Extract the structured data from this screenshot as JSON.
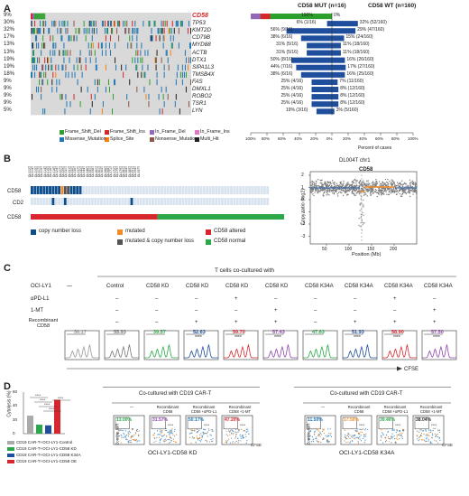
{
  "panelA": {
    "label": "A",
    "header_mut": "CD58 MUT (n=16)",
    "header_wt": "CD58 WT (n=160)",
    "x_title": "Percent of cases",
    "x_ticks": [
      "100%",
      "80%",
      "60%",
      "40%",
      "20%",
      "0%",
      "20%",
      "40%",
      "60%",
      "80%",
      "100%"
    ],
    "genes": [
      {
        "name": "CD58",
        "pct": "9%",
        "mut": "100%",
        "wt": "0%",
        "mut_frac": 1.0,
        "wt_frac": 0.0,
        "highlight": true
      },
      {
        "name": "TP53",
        "pct": "30%",
        "mut": "6% (1/16)",
        "wt": "32% (52/160)",
        "mut_frac": 0.06,
        "wt_frac": 0.32
      },
      {
        "name": "KMT2D",
        "pct": "32%",
        "mut": "56% (9/16)",
        "wt": "29% (47/160)",
        "mut_frac": 0.56,
        "wt_frac": 0.29
      },
      {
        "name": "CD79B",
        "pct": "17%",
        "mut": "38% (6/16)",
        "wt": "15% (24/160)",
        "mut_frac": 0.38,
        "wt_frac": 0.15
      },
      {
        "name": "MYD88",
        "pct": "13%",
        "mut": "31% (5/16)",
        "wt": "11% (18/160)",
        "mut_frac": 0.31,
        "wt_frac": 0.11
      },
      {
        "name": "ACTB",
        "pct": "13%",
        "mut": "31% (5/16)",
        "wt": "11% (18/160)",
        "mut_frac": 0.31,
        "wt_frac": 0.11
      },
      {
        "name": "DTX1",
        "pct": "19%",
        "mut": "50% (8/16)",
        "wt": "16% (26/160)",
        "mut_frac": 0.5,
        "wt_frac": 0.16
      },
      {
        "name": "SIPA1L3",
        "pct": "19%",
        "mut": "44% (7/16)",
        "wt": "17% (27/160)",
        "mut_frac": 0.44,
        "wt_frac": 0.17
      },
      {
        "name": "TMSB4X",
        "pct": "18%",
        "mut": "38% (6/16)",
        "wt": "16% (25/160)",
        "mut_frac": 0.38,
        "wt_frac": 0.16
      },
      {
        "name": "FAS",
        "pct": "9%",
        "mut": "25% (4/16)",
        "wt": "7% (11/160)",
        "mut_frac": 0.25,
        "wt_frac": 0.07
      },
      {
        "name": "DMXL1",
        "pct": "9%",
        "mut": "25% (4/16)",
        "wt": "8% (12/160)",
        "mut_frac": 0.25,
        "wt_frac": 0.08
      },
      {
        "name": "ROBO2",
        "pct": "9%",
        "mut": "25% (4/16)",
        "wt": "8% (12/160)",
        "mut_frac": 0.25,
        "wt_frac": 0.08
      },
      {
        "name": "TSR1",
        "pct": "9%",
        "mut": "25% (4/16)",
        "wt": "8% (12/160)",
        "mut_frac": 0.25,
        "wt_frac": 0.08
      },
      {
        "name": "LYN",
        "pct": "5%",
        "mut": "19% (3/16)",
        "wt": "3% (5/160)",
        "mut_frac": 0.19,
        "wt_frac": 0.03
      }
    ],
    "legend": [
      {
        "label": "Frame_Shift_Del",
        "color": "#2ca02c"
      },
      {
        "label": "Frame_Shift_Ins",
        "color": "#d62728"
      },
      {
        "label": "In_Frame_Del",
        "color": "#9467bd"
      },
      {
        "label": "In_Frame_Ins",
        "color": "#e377c2"
      },
      {
        "label": "Missense_Mutation",
        "color": "#1f77b4"
      },
      {
        "label": "Splice_Site",
        "color": "#ff7f0e"
      },
      {
        "label": "Nonsense_Mutation",
        "color": "#8c564b"
      },
      {
        "label": "Multi_Hit",
        "color": "#222222"
      }
    ]
  },
  "panelB": {
    "label": "B",
    "samples": [
      "DL002T",
      "DL004T",
      "DL005T",
      "DL007T",
      "DL009T",
      "DL014T",
      "DL015T",
      "DL016T",
      "DL018T",
      "DL024T",
      "DL027T",
      "DL029T",
      "DL030T",
      "DL031T",
      "DL032T",
      "DL036T",
      "DL037T",
      "DL042T",
      "DL044T",
      "DL046T",
      "DL050T",
      "DL058T",
      "DL060T",
      "DL061T",
      "DL063T",
      "DL066T",
      "DL068T",
      "DL071T",
      "DL072T",
      "DL075T",
      "DL079T",
      "DL080T",
      "DL084T",
      "DL085T",
      "DL091T",
      "DL094T",
      "DL097T"
    ],
    "rows": [
      "CD58",
      "CD2"
    ],
    "bar_label": "CD58",
    "legend": [
      {
        "label": "copy number loss",
        "color": "#0d4d8c"
      },
      {
        "label": "mutated",
        "color": "#f28c28"
      },
      {
        "label": "CD58 altered",
        "color": "#d7262e"
      },
      {
        "label": "mutated & copy number loss",
        "color": "#555555"
      },
      {
        "label": "CD58 normal",
        "color": "#2aa84a"
      }
    ],
    "scatter_title": "DL004T chr1",
    "scatter_gene": "CD58",
    "scatter_ylabel": "Copy ratio (log2)",
    "scatter_xlabel": "Position (Mb)",
    "scatter_yticks": [
      "2",
      "1",
      "0",
      "-1",
      "-2",
      "-3"
    ],
    "scatter_xticks": [
      "50",
      "100",
      "150",
      "200"
    ]
  },
  "panelC": {
    "label": "C",
    "title": "T cells co-cultured with",
    "row_labels": [
      "OCI-LY1",
      "αPD-L1",
      "1-MT",
      "Recombinant CD58"
    ],
    "columns": [
      {
        "head": "—",
        "pdl1": "",
        "mt": "",
        "rec": "",
        "value": "56.17",
        "color": "#999999"
      },
      {
        "head": "Control",
        "pdl1": "–",
        "mt": "–",
        "rec": "–",
        "value": "55.93",
        "color": "#777777"
      },
      {
        "head": "CD58 KD",
        "pdl1": "–",
        "mt": "–",
        "rec": "–",
        "value": "39.57",
        "color": "#2aa84a"
      },
      {
        "head": "CD58 KD",
        "pdl1": "–",
        "mt": "–",
        "rec": "+",
        "value": "52.63",
        "color": "#1f4e9c",
        "stars": "****"
      },
      {
        "head": "CD58 KD",
        "pdl1": "+",
        "mt": "–",
        "rec": "+",
        "value": "59.70",
        "color": "#d7262e",
        "stars": "****"
      },
      {
        "head": "CD58 KD",
        "pdl1": "–",
        "mt": "+",
        "rec": "+",
        "value": "57.43",
        "color": "#8e44ad",
        "stars": "****"
      },
      {
        "head": "CD58 K34A",
        "pdl1": "–",
        "mt": "–",
        "rec": "–",
        "value": "47.63",
        "color": "#2aa84a"
      },
      {
        "head": "CD58 K34A",
        "pdl1": "–",
        "mt": "–",
        "rec": "+",
        "value": "51.93",
        "color": "#1f4e9c",
        "stars": "****"
      },
      {
        "head": "CD58 K34A",
        "pdl1": "+",
        "mt": "–",
        "rec": "+",
        "value": "58.90",
        "color": "#d7262e",
        "stars": "****"
      },
      {
        "head": "CD58 K34A",
        "pdl1": "–",
        "mt": "+",
        "rec": "+",
        "value": "57.50",
        "color": "#8e44ad",
        "stars": "****"
      }
    ],
    "xlabel": "CFSE"
  },
  "panelD": {
    "label": "D",
    "bar_ylabel": "Cytolysis (%)",
    "bar_yticks": [
      "60",
      "40",
      "20",
      "0"
    ],
    "sig": [
      "****",
      "****",
      "****",
      "****",
      "****"
    ],
    "bars": [
      {
        "name": "CD19 CAR-T+OCI-LY1-Control",
        "value": 26,
        "color": "#aaaaaa"
      },
      {
        "name": "CD19 CAR-T+OCI-LY1-CD58 KD",
        "value": 13,
        "color": "#2aa84a"
      },
      {
        "name": "CD19 CAR-T+OCI-LY1-CD58 K34A",
        "value": 12,
        "color": "#1f4e9c"
      },
      {
        "name": "CD19 CAR-T+OCI-LY1-CD58 OE",
        "value": 49,
        "color": "#d7262e"
      }
    ],
    "group1": {
      "title": "Co-cultured with CD19 CAR-T",
      "caption": "OCI-LY1-CD58 KD",
      "heads": [
        "—",
        "Recombinant CD58",
        "Recombinant CD58 +αPD-L1",
        "Recombinant CD58 +1-MT"
      ],
      "values": [
        "13.00%",
        "31.57%",
        "50.17%",
        "47.20%"
      ],
      "colors": [
        "#2aa84a",
        "#8e44ad",
        "#1f77b4",
        "#d7262e"
      ],
      "stars": [
        "",
        "****",
        "****",
        "****"
      ]
    },
    "group2": {
      "title": "Co-cultured with CD19 CAR-T",
      "caption": "OCI-LY1-CD58 K34A",
      "heads": [
        "—",
        "Recombinant CD58",
        "Recombinant CD58 +αPD-L1",
        "Recombinant CD58 +1-MT"
      ],
      "values": [
        "11.50%",
        "17.50%",
        "39.40%",
        "38.04%"
      ],
      "colors": [
        "#1f77b4",
        "#f28c28",
        "#2aa84a",
        "#333333"
      ],
      "stars": [
        "",
        "****",
        "****",
        "****"
      ]
    },
    "y_axis": "Zombie NIR",
    "x_axis": "CFSE"
  }
}
